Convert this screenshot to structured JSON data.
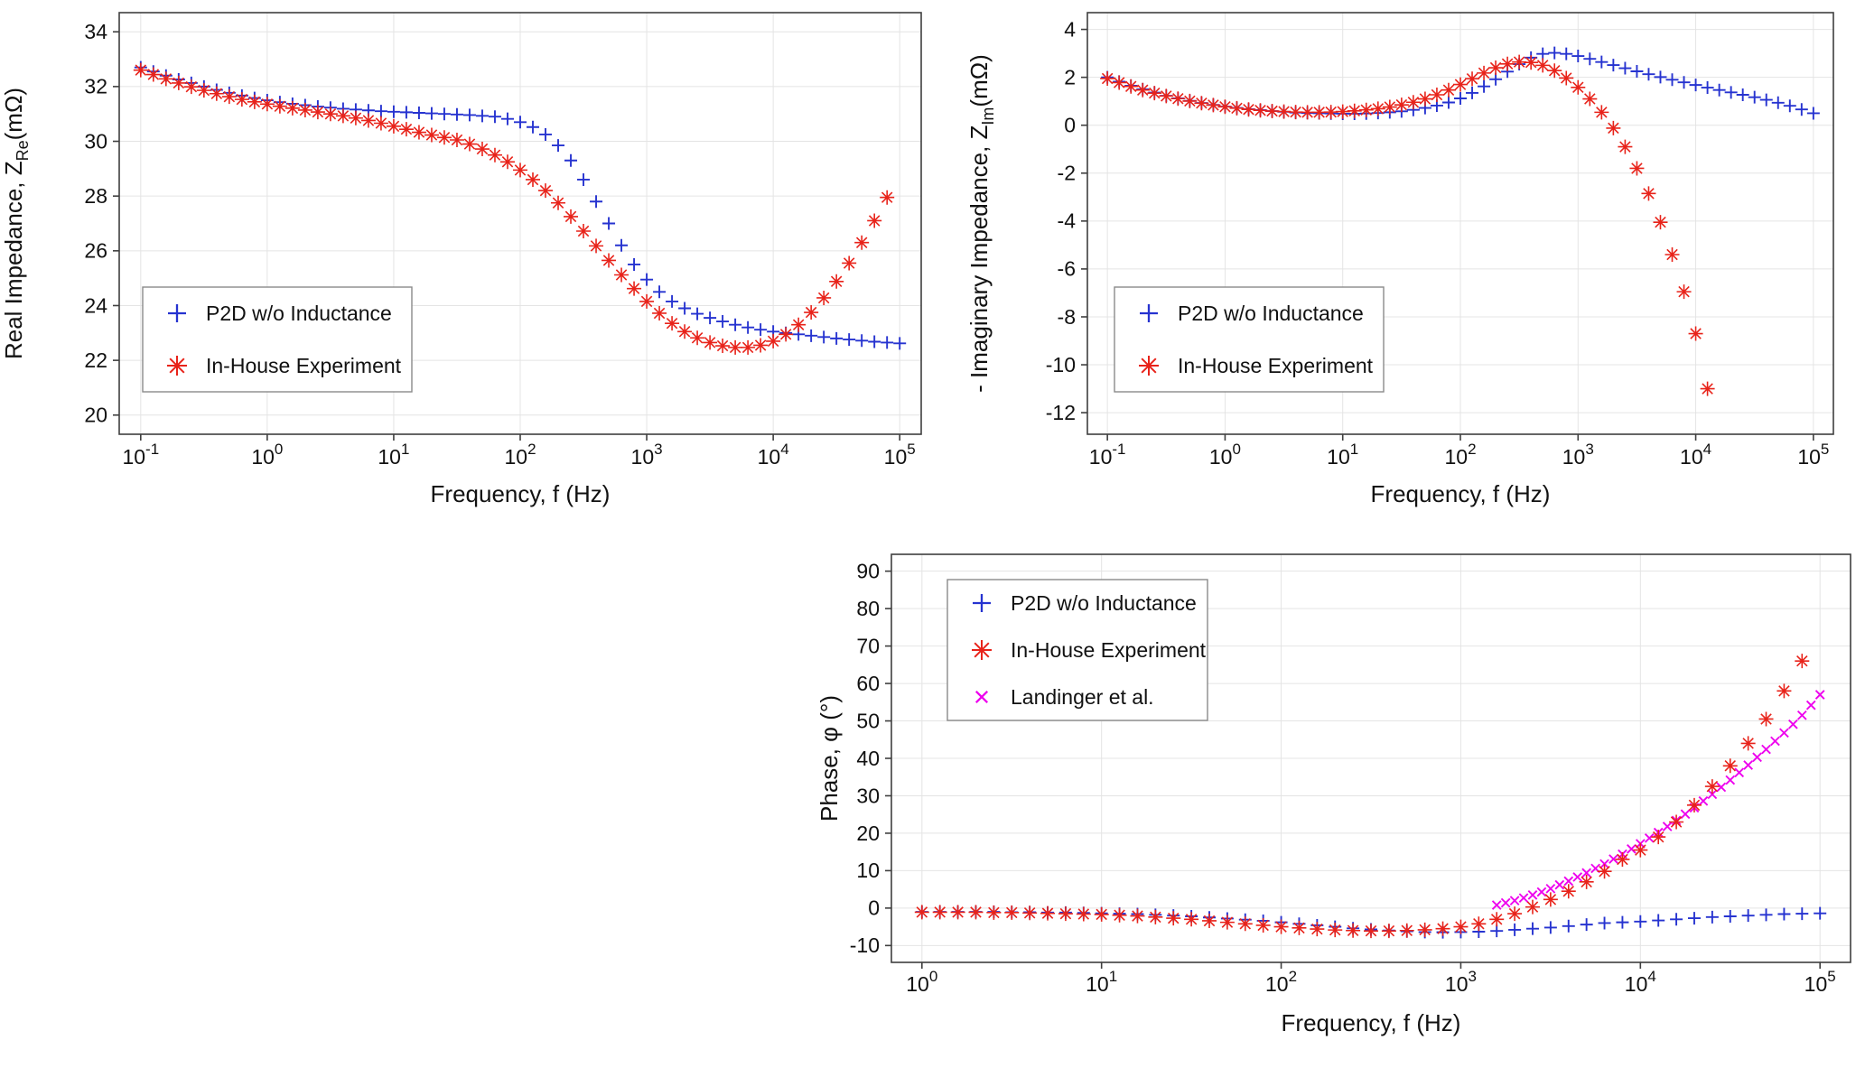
{
  "chart_data": [
    {
      "id": "real-impedance",
      "type": "scatter",
      "xlabel": "Frequency, f (Hz)",
      "ylabel": {
        "prefix": "Real Impedance, Z",
        "sub": "Re",
        "suffix": "(mΩ)"
      },
      "x_scale": "log",
      "xlim_log10": [
        -1.17,
        5.17
      ],
      "x_ticks_log10": [
        -1,
        0,
        1,
        2,
        3,
        4,
        5
      ],
      "ylim": [
        19.3,
        34.7
      ],
      "y_ticks": [
        20,
        22,
        24,
        26,
        28,
        30,
        32,
        34
      ],
      "grid": true,
      "legend_position": "left-middle",
      "series": [
        {
          "name": "P2D w/o Inductance",
          "slug": "p2d",
          "color": "#2633d0",
          "marker": "plus",
          "x_log10_start": -1.0,
          "x_log10_step": 0.1,
          "y": [
            32.7,
            32.55,
            32.4,
            32.26,
            32.13,
            32.0,
            31.88,
            31.77,
            31.67,
            31.58,
            31.5,
            31.43,
            31.37,
            31.32,
            31.27,
            31.23,
            31.19,
            31.16,
            31.13,
            31.1,
            31.08,
            31.06,
            31.04,
            31.02,
            31.0,
            30.98,
            30.96,
            30.93,
            30.9,
            30.82,
            30.7,
            30.52,
            30.25,
            29.85,
            29.3,
            28.6,
            27.8,
            27.0,
            26.2,
            25.5,
            24.95,
            24.5,
            24.15,
            23.9,
            23.7,
            23.55,
            23.42,
            23.3,
            23.2,
            23.12,
            23.05,
            23.0,
            22.95,
            22.9,
            22.85,
            22.8,
            22.76,
            22.72,
            22.68,
            22.65,
            22.62
          ]
        },
        {
          "name": "In-House Experiment",
          "slug": "inhouse",
          "color": "#e8231a",
          "marker": "asterisk",
          "x_log10_start": -1.0,
          "x_log10_step": 0.1,
          "y": [
            32.6,
            32.44,
            32.28,
            32.13,
            31.99,
            31.86,
            31.74,
            31.63,
            31.53,
            31.44,
            31.36,
            31.28,
            31.21,
            31.14,
            31.07,
            31.0,
            30.93,
            30.85,
            30.76,
            30.66,
            30.55,
            30.44,
            30.33,
            30.23,
            30.14,
            30.05,
            29.9,
            29.72,
            29.5,
            29.25,
            28.95,
            28.6,
            28.2,
            27.75,
            27.25,
            26.72,
            26.18,
            25.65,
            25.12,
            24.62,
            24.15,
            23.72,
            23.35,
            23.05,
            22.82,
            22.65,
            22.53,
            22.47,
            22.47,
            22.55,
            22.7,
            22.95,
            23.3,
            23.75,
            24.28,
            24.88,
            25.55,
            26.3,
            27.1,
            27.95
          ]
        }
      ]
    },
    {
      "id": "imaginary-impedance",
      "type": "scatter",
      "xlabel": "Frequency, f (Hz)",
      "ylabel": {
        "prefix": "- Imaginary Impedance, Z",
        "sub": "Im",
        "suffix": "(mΩ)"
      },
      "x_scale": "log",
      "xlim_log10": [
        -1.17,
        5.17
      ],
      "x_ticks_log10": [
        -1,
        0,
        1,
        2,
        3,
        4,
        5
      ],
      "ylim": [
        -12.9,
        4.7
      ],
      "y_ticks": [
        4,
        2,
        0,
        -2,
        -4,
        -6,
        -8,
        -10,
        -12
      ],
      "grid": true,
      "legend_position": "left-middle",
      "series": [
        {
          "name": "P2D w/o Inductance",
          "slug": "p2d",
          "color": "#2633d0",
          "marker": "plus",
          "x_log10_start": -1.0,
          "x_log10_step": 0.1,
          "y": [
            2.0,
            1.82,
            1.65,
            1.5,
            1.36,
            1.23,
            1.12,
            1.02,
            0.93,
            0.85,
            0.78,
            0.72,
            0.67,
            0.63,
            0.59,
            0.56,
            0.53,
            0.51,
            0.5,
            0.49,
            0.48,
            0.48,
            0.49,
            0.51,
            0.54,
            0.58,
            0.64,
            0.72,
            0.82,
            0.95,
            1.12,
            1.35,
            1.62,
            1.92,
            2.24,
            2.55,
            2.82,
            2.98,
            3.02,
            2.98,
            2.89,
            2.77,
            2.64,
            2.51,
            2.38,
            2.25,
            2.13,
            2.01,
            1.9,
            1.79,
            1.68,
            1.57,
            1.47,
            1.37,
            1.27,
            1.17,
            1.06,
            0.94,
            0.81,
            0.66,
            0.5
          ]
        },
        {
          "name": "In-House Experiment",
          "slug": "inhouse",
          "color": "#e8231a",
          "marker": "asterisk",
          "x_log10_start": -1.0,
          "x_log10_step": 0.1,
          "y": [
            1.95,
            1.78,
            1.62,
            1.47,
            1.34,
            1.22,
            1.11,
            1.01,
            0.92,
            0.84,
            0.77,
            0.71,
            0.66,
            0.62,
            0.59,
            0.57,
            0.55,
            0.54,
            0.54,
            0.55,
            0.57,
            0.6,
            0.64,
            0.69,
            0.76,
            0.85,
            0.96,
            1.1,
            1.27,
            1.47,
            1.7,
            1.94,
            2.18,
            2.4,
            2.56,
            2.64,
            2.62,
            2.5,
            2.28,
            1.97,
            1.58,
            1.1,
            0.54,
            -0.12,
            -0.9,
            -1.8,
            -2.85,
            -4.05,
            -5.4,
            -6.95,
            -8.7,
            -11.0
          ]
        }
      ]
    },
    {
      "id": "phase",
      "type": "scatter",
      "xlabel": "Frequency, f (Hz)",
      "ylabel": {
        "prefix": "Phase, φ (°)",
        "sub": "",
        "suffix": ""
      },
      "x_scale": "log",
      "xlim_log10": [
        -0.17,
        5.17
      ],
      "x_ticks_log10": [
        0,
        1,
        2,
        3,
        4,
        5
      ],
      "ylim": [
        -14.5,
        94.5
      ],
      "y_ticks": [
        -10,
        0,
        10,
        20,
        30,
        40,
        50,
        60,
        70,
        80,
        90
      ],
      "grid": true,
      "legend_position": "left-top",
      "series": [
        {
          "name": "P2D w/o Inductance",
          "slug": "p2d",
          "color": "#2633d0",
          "marker": "plus",
          "x_log10_start": 0.0,
          "x_log10_step": 0.1,
          "y": [
            -1.0,
            -1.0,
            -1.0,
            -1.0,
            -1.0,
            -1.1,
            -1.1,
            -1.2,
            -1.2,
            -1.3,
            -1.4,
            -1.5,
            -1.6,
            -1.8,
            -2.0,
            -2.2,
            -2.5,
            -2.8,
            -3.1,
            -3.4,
            -3.8,
            -4.2,
            -4.6,
            -5.0,
            -5.4,
            -5.7,
            -6.0,
            -6.2,
            -6.4,
            -6.45,
            -6.4,
            -6.3,
            -6.1,
            -5.8,
            -5.5,
            -5.2,
            -4.8,
            -4.4,
            -4.0,
            -3.8,
            -3.6,
            -3.3,
            -3.0,
            -2.7,
            -2.4,
            -2.2,
            -2.0,
            -1.8,
            -1.6,
            -1.5,
            -1.4
          ]
        },
        {
          "name": "In-House Experiment",
          "slug": "inhouse",
          "color": "#e8231a",
          "marker": "asterisk",
          "x_log10_start": 0.0,
          "x_log10_step": 0.1,
          "y": [
            -1.1,
            -1.1,
            -1.1,
            -1.1,
            -1.2,
            -1.2,
            -1.3,
            -1.4,
            -1.5,
            -1.6,
            -1.7,
            -1.9,
            -2.1,
            -2.4,
            -2.7,
            -3.0,
            -3.4,
            -3.8,
            -4.2,
            -4.6,
            -5.0,
            -5.3,
            -5.6,
            -5.85,
            -6.0,
            -6.1,
            -6.1,
            -6.0,
            -5.8,
            -5.5,
            -5.0,
            -4.2,
            -3.0,
            -1.5,
            0.3,
            2.3,
            4.5,
            7.0,
            9.8,
            13.0,
            15.5,
            19.0,
            23.0,
            27.5,
            32.5,
            38.0,
            44.0,
            50.5,
            58.0,
            66.0
          ]
        },
        {
          "name": "Landinger et al.",
          "slug": "landinger",
          "color": "#ee00ee",
          "marker": "x",
          "x_log10_start": 3.2,
          "x_log10_step": 0.05,
          "y": [
            0.8,
            1.4,
            2.0,
            2.7,
            3.5,
            4.3,
            5.2,
            6.2,
            7.2,
            8.3,
            9.4,
            10.6,
            11.8,
            13.1,
            14.4,
            15.8,
            17.2,
            18.7,
            20.2,
            21.8,
            23.4,
            25.1,
            26.8,
            28.6,
            30.4,
            32.3,
            34.2,
            36.2,
            38.2,
            40.3,
            42.4,
            44.6,
            46.8,
            49.1,
            51.5,
            54.2,
            57.0
          ]
        }
      ]
    }
  ],
  "style": {
    "frame_color": "#3f3f3f",
    "grid_color": "#e4e4e4",
    "text_color": "#111111",
    "legend_border_color": "#8a8a8a",
    "background": "#ffffff"
  }
}
